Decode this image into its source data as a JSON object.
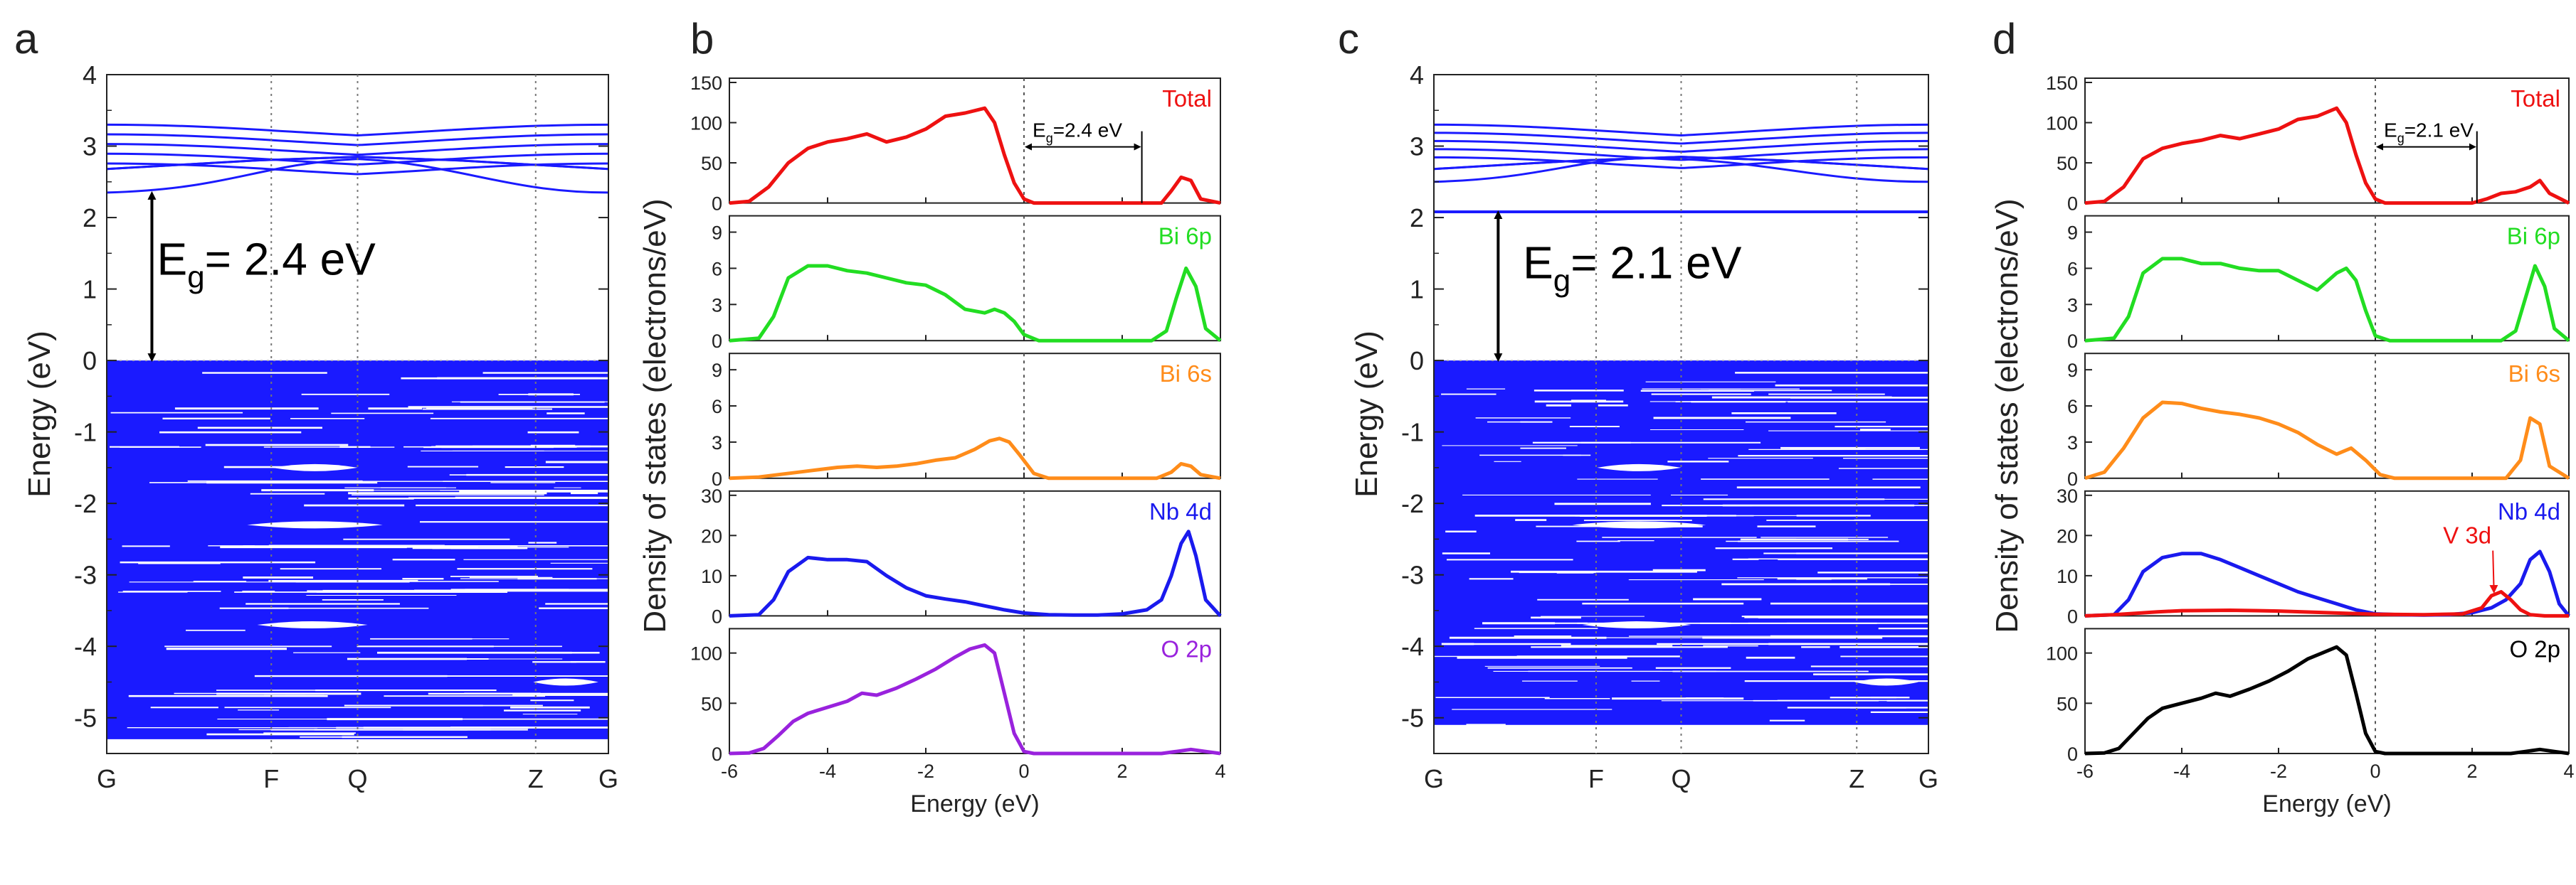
{
  "colors": {
    "band": "#1a1aff",
    "total": "#ee1111",
    "bi6p": "#22dd22",
    "bi6s": "#ff8c1a",
    "nb4d": "#1a1aee",
    "o2p_b": "#9922dd",
    "o2p_d": "#000000",
    "v3d": "#ee1111"
  },
  "chart_data": [
    {
      "id": "a",
      "type": "line",
      "panel_label": "a",
      "title": "",
      "xlabel": "",
      "ylabel": "Energy (eV)",
      "ylim": [
        -5.5,
        4
      ],
      "yticks": [
        -5,
        -4,
        -3,
        -2,
        -1,
        0,
        1,
        2,
        3,
        4
      ],
      "ytick_labels": [
        "-5",
        "-4",
        "-3",
        "-2",
        "-1",
        "0",
        "1",
        "2",
        "3",
        "4"
      ],
      "kpoint_labels": [
        "G",
        "F",
        "Q",
        "Z",
        "G"
      ],
      "kpoint_positions": [
        0,
        0.328,
        0.5,
        0.855,
        1
      ],
      "valence_band_range": [
        -5.3,
        0
      ],
      "conduction_band_range": [
        2.35,
        3.3
      ],
      "annotation": {
        "text_main": "E",
        "text_sub": "g",
        "text_rest": "= 2.4 eV",
        "arrow_from": 0,
        "arrow_to": 2.35
      }
    },
    {
      "id": "b",
      "type": "line",
      "panel_label": "b",
      "xlabel": "Energy (eV)",
      "ylabel": "Density of states (electrons/eV)",
      "xlim": [
        -6,
        4
      ],
      "xticks": [
        -6,
        -4,
        -2,
        0,
        2,
        4
      ],
      "xtick_labels": [
        "-6",
        "-4",
        "-2",
        "0",
        "2",
        "4"
      ],
      "subplots": [
        {
          "name": "Total",
          "color_key": "total",
          "ylim": [
            0,
            150
          ],
          "yticks": [
            0,
            50,
            100,
            150
          ],
          "ytick_labels": [
            "0",
            "50",
            "100",
            "150"
          ],
          "x": [
            -6,
            -5.6,
            -5.2,
            -4.8,
            -4.4,
            -4,
            -3.6,
            -3.2,
            -2.8,
            -2.4,
            -2,
            -1.6,
            -1.2,
            -0.8,
            -0.6,
            -0.4,
            -0.2,
            0,
            0.2,
            2.8,
            3,
            3.2,
            3.4,
            3.6,
            4
          ],
          "y": [
            0,
            2,
            20,
            50,
            68,
            76,
            80,
            86,
            76,
            82,
            92,
            108,
            112,
            118,
            100,
            60,
            25,
            5,
            0,
            0,
            15,
            32,
            28,
            5,
            0
          ],
          "gap_annotation": {
            "text_main": "E",
            "text_sub": "g",
            "text_rest": "=2.4 eV",
            "from": 0,
            "to": 2.4
          }
        },
        {
          "name": "Bi 6p",
          "color_key": "bi6p",
          "ylim": [
            0,
            10
          ],
          "yticks": [
            0,
            3,
            6,
            9
          ],
          "ytick_labels": [
            "0",
            "3",
            "6",
            "9"
          ],
          "x": [
            -6,
            -5.4,
            -5.1,
            -4.8,
            -4.4,
            -4,
            -3.6,
            -3.2,
            -2.8,
            -2.4,
            -2,
            -1.6,
            -1.2,
            -0.8,
            -0.6,
            -0.4,
            -0.2,
            0,
            0.3,
            2.6,
            2.9,
            3.1,
            3.3,
            3.5,
            3.7,
            4
          ],
          "y": [
            0,
            0.2,
            2,
            5.2,
            6.2,
            6.2,
            5.8,
            5.6,
            5.2,
            4.8,
            4.6,
            3.8,
            2.6,
            2.3,
            2.6,
            2.3,
            1.6,
            0.5,
            0,
            0,
            0.8,
            3.5,
            6,
            4.5,
            1,
            0
          ]
        },
        {
          "name": "Bi 6s",
          "color_key": "bi6s",
          "ylim": [
            0,
            10
          ],
          "yticks": [
            0,
            3,
            6,
            9
          ],
          "ytick_labels": [
            "0",
            "3",
            "6",
            "9"
          ],
          "x": [
            -6,
            -5.4,
            -5,
            -4.6,
            -4.2,
            -3.8,
            -3.4,
            -3,
            -2.6,
            -2.2,
            -1.8,
            -1.4,
            -1,
            -0.7,
            -0.5,
            -0.3,
            -0.1,
            0.2,
            0.5,
            2.7,
            3,
            3.2,
            3.4,
            3.6,
            4
          ],
          "y": [
            0,
            0.1,
            0.3,
            0.5,
            0.7,
            0.9,
            1,
            0.9,
            1,
            1.2,
            1.5,
            1.7,
            2.4,
            3.1,
            3.3,
            3,
            2,
            0.4,
            0,
            0,
            0.5,
            1.2,
            1,
            0.3,
            0
          ]
        },
        {
          "name": "Nb 4d",
          "color_key": "nb4d",
          "ylim": [
            0,
            30
          ],
          "yticks": [
            0,
            10,
            20,
            30
          ],
          "ytick_labels": [
            "0",
            "10",
            "20",
            "30"
          ],
          "x": [
            -6,
            -5.4,
            -5.1,
            -4.8,
            -4.4,
            -4,
            -3.6,
            -3.2,
            -2.8,
            -2.4,
            -2,
            -1.6,
            -1.2,
            -0.8,
            -0.4,
            0,
            0.5,
            1,
            1.5,
            2,
            2.5,
            2.8,
            3,
            3.2,
            3.35,
            3.5,
            3.7,
            4
          ],
          "y": [
            0,
            0.3,
            4,
            11,
            14.5,
            14,
            14,
            13.5,
            10,
            7,
            5,
            4.2,
            3.5,
            2.5,
            1.5,
            0.7,
            0.3,
            0.2,
            0.2,
            0.5,
            1.5,
            4,
            10,
            18,
            21,
            15,
            4,
            0
          ]
        },
        {
          "name": "O 2p",
          "color_key": "o2p_b",
          "ylim": [
            0,
            120
          ],
          "yticks": [
            0,
            50,
            100
          ],
          "ytick_labels": [
            "0",
            "50",
            "100"
          ],
          "x": [
            -6,
            -5.6,
            -5.3,
            -5,
            -4.7,
            -4.4,
            -4,
            -3.6,
            -3.3,
            -3,
            -2.6,
            -2.2,
            -1.8,
            -1.4,
            -1.1,
            -0.8,
            -0.6,
            -0.4,
            -0.2,
            0,
            0.2,
            2.8,
            3.1,
            3.4,
            3.7,
            4
          ],
          "y": [
            0,
            0.5,
            5,
            18,
            32,
            40,
            46,
            52,
            60,
            58,
            65,
            74,
            84,
            96,
            104,
            108,
            100,
            60,
            20,
            2,
            0,
            0,
            2,
            4,
            2,
            0
          ]
        }
      ]
    },
    {
      "id": "c",
      "type": "line",
      "panel_label": "c",
      "title": "",
      "xlabel": "",
      "ylabel": "Energy (eV)",
      "ylim": [
        -5.5,
        4
      ],
      "yticks": [
        -5,
        -4,
        -3,
        -2,
        -1,
        0,
        1,
        2,
        3,
        4
      ],
      "ytick_labels": [
        "-5",
        "-4",
        "-3",
        "-2",
        "-1",
        "0",
        "1",
        "2",
        "3",
        "4"
      ],
      "kpoint_labels": [
        "G",
        "F",
        "Q",
        "Z",
        "G"
      ],
      "kpoint_positions": [
        0,
        0.328,
        0.5,
        0.855,
        1
      ],
      "valence_band_range": [
        -5.1,
        0
      ],
      "conduction_band_range": [
        2.5,
        3.3
      ],
      "isolated_band": 2.08,
      "annotation": {
        "text_main": "E",
        "text_sub": "g",
        "text_rest": "= 2.1 eV",
        "arrow_from": 0,
        "arrow_to": 2.08
      }
    },
    {
      "id": "d",
      "type": "line",
      "panel_label": "d",
      "xlabel": "Energy (eV)",
      "ylabel": "Density of states (electrons/eV)",
      "xlim": [
        -6,
        4
      ],
      "xticks": [
        -6,
        -4,
        -2,
        0,
        2,
        4
      ],
      "xtick_labels": [
        "-6",
        "-4",
        "-2",
        "0",
        "2",
        "4"
      ],
      "subplots": [
        {
          "name": "Total",
          "color_key": "total",
          "ylim": [
            0,
            150
          ],
          "yticks": [
            0,
            50,
            100,
            150
          ],
          "ytick_labels": [
            "0",
            "50",
            "100",
            "150"
          ],
          "x": [
            -6,
            -5.6,
            -5.2,
            -4.8,
            -4.4,
            -4,
            -3.6,
            -3.2,
            -2.8,
            -2.4,
            -2,
            -1.6,
            -1.2,
            -0.8,
            -0.6,
            -0.4,
            -0.2,
            0,
            0.2,
            2,
            2.3,
            2.6,
            2.9,
            3.2,
            3.4,
            3.6,
            4
          ],
          "y": [
            0,
            2,
            20,
            55,
            68,
            74,
            78,
            84,
            80,
            86,
            92,
            104,
            108,
            118,
            100,
            60,
            25,
            5,
            0,
            0,
            5,
            12,
            14,
            20,
            28,
            12,
            0
          ],
          "gap_annotation": {
            "text_main": "E",
            "text_sub": "g",
            "text_rest": "=2.1 eV",
            "from": 0,
            "to": 2.1
          }
        },
        {
          "name": "Bi 6p",
          "color_key": "bi6p",
          "ylim": [
            0,
            10
          ],
          "yticks": [
            0,
            3,
            6,
            9
          ],
          "ytick_labels": [
            "0",
            "3",
            "6",
            "9"
          ],
          "x": [
            -6,
            -5.4,
            -5.1,
            -4.8,
            -4.4,
            -4,
            -3.6,
            -3.2,
            -2.8,
            -2.4,
            -2,
            -1.6,
            -1.2,
            -0.8,
            -0.6,
            -0.4,
            -0.2,
            0,
            0.3,
            2.6,
            2.9,
            3.1,
            3.3,
            3.5,
            3.7,
            4
          ],
          "y": [
            0,
            0.2,
            2,
            5.6,
            6.8,
            6.8,
            6.4,
            6.4,
            6,
            5.8,
            5.8,
            5,
            4.2,
            5.6,
            6,
            5,
            2.5,
            0.4,
            0,
            0,
            0.8,
            3.5,
            6.2,
            4.5,
            1,
            0
          ]
        },
        {
          "name": "Bi 6s",
          "color_key": "bi6s",
          "ylim": [
            0,
            10
          ],
          "yticks": [
            0,
            3,
            6,
            9
          ],
          "ytick_labels": [
            "0",
            "3",
            "6",
            "9"
          ],
          "x": [
            -6,
            -5.6,
            -5.2,
            -4.8,
            -4.4,
            -4,
            -3.6,
            -3.2,
            -2.8,
            -2.4,
            -2,
            -1.6,
            -1.2,
            -0.8,
            -0.5,
            -0.2,
            0.1,
            0.4,
            2.7,
            3,
            3.2,
            3.4,
            3.6,
            4
          ],
          "y": [
            0,
            0.5,
            2.5,
            5,
            6.3,
            6.2,
            5.8,
            5.5,
            5.3,
            5,
            4.5,
            3.8,
            2.8,
            2,
            2.5,
            1.5,
            0.3,
            0,
            0,
            1.5,
            5,
            4.5,
            1,
            0
          ]
        },
        {
          "name": "Nb 4d",
          "color_key": "nb4d",
          "ylim": [
            0,
            30
          ],
          "yticks": [
            0,
            10,
            20,
            30
          ],
          "ytick_labels": [
            "0",
            "10",
            "20",
            "30"
          ],
          "x": [
            -6,
            -5.4,
            -5.1,
            -4.8,
            -4.4,
            -4,
            -3.6,
            -3.2,
            -2.8,
            -2.4,
            -2,
            -1.6,
            -1.2,
            -0.8,
            -0.4,
            0,
            0.5,
            1,
            1.5,
            2,
            2.4,
            2.7,
            3,
            3.2,
            3.4,
            3.6,
            3.8,
            4
          ],
          "y": [
            0,
            0.3,
            4,
            11,
            14.5,
            15.5,
            15.5,
            14,
            12,
            10,
            8,
            6,
            4.5,
            3,
            1.5,
            0.5,
            0.3,
            0.2,
            0.3,
            0.8,
            2,
            4,
            8,
            14,
            16,
            11,
            3,
            0
          ]
        },
        {
          "name": "V 3d",
          "color_key": "v3d",
          "ylim": [
            0,
            30
          ],
          "x": [
            -6,
            -5.4,
            -4.5,
            -4,
            -3,
            -2,
            -1,
            0,
            1,
            1.8,
            2.2,
            2.4,
            2.6,
            2.8,
            3,
            3.2,
            3.5,
            4
          ],
          "y": [
            0,
            0.3,
            1,
            1.3,
            1.4,
            1.2,
            0.8,
            0.4,
            0.3,
            0.5,
            2,
            5,
            6,
            4,
            1.5,
            0.3,
            0,
            0
          ]
        },
        {
          "name": "O 2p",
          "color_key": "o2p_d",
          "ylim": [
            0,
            120
          ],
          "yticks": [
            0,
            50,
            100
          ],
          "ytick_labels": [
            "0",
            "50",
            "100"
          ],
          "x": [
            -6,
            -5.6,
            -5.3,
            -5,
            -4.7,
            -4.4,
            -4,
            -3.6,
            -3.3,
            -3,
            -2.6,
            -2.2,
            -1.8,
            -1.4,
            -1.1,
            -0.8,
            -0.6,
            -0.4,
            -0.2,
            0,
            0.2,
            2.8,
            3.1,
            3.4,
            3.7,
            4
          ],
          "y": [
            0,
            0.5,
            5,
            20,
            35,
            45,
            50,
            55,
            60,
            57,
            64,
            72,
            82,
            94,
            100,
            106,
            98,
            60,
            20,
            2,
            0,
            0,
            2,
            4,
            2,
            0
          ]
        }
      ]
    }
  ]
}
